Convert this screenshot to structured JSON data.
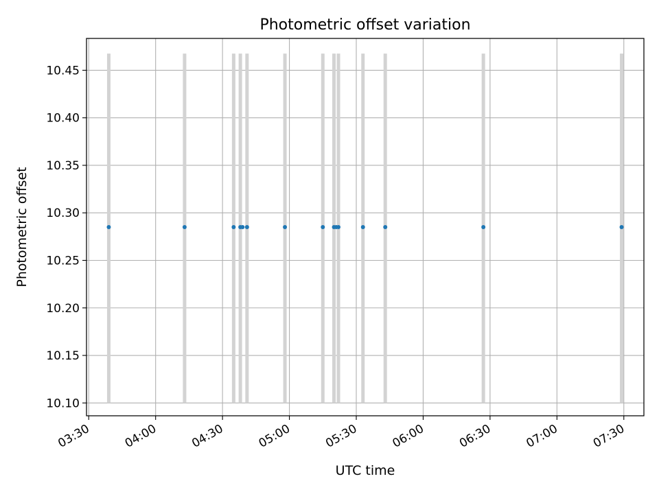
{
  "chart_data": {
    "type": "scatter",
    "title": "Photometric offset variation",
    "xlabel": "UTC time",
    "ylabel": "Photometric offset",
    "x_axis_kind": "time",
    "xlim": [
      "03:29",
      "07:39"
    ],
    "ylim": [
      10.0865,
      10.4835
    ],
    "xticks": [
      "03:30",
      "04:00",
      "04:30",
      "05:00",
      "05:30",
      "06:00",
      "06:30",
      "07:00",
      "07:30"
    ],
    "yticks": [
      10.1,
      10.15,
      10.2,
      10.25,
      10.3,
      10.35,
      10.4,
      10.45
    ],
    "grid": true,
    "series": [
      {
        "color": "#1f77b4",
        "x": [
          "03:39",
          "04:13",
          "04:35",
          "04:38",
          "04:39",
          "04:41",
          "04:58",
          "05:15",
          "05:20",
          "05:21",
          "05:22",
          "05:33",
          "05:43",
          "06:27",
          "07:29"
        ],
        "y": [
          10.285,
          10.285,
          10.285,
          10.285,
          10.285,
          10.285,
          10.285,
          10.285,
          10.285,
          10.285,
          10.285,
          10.285,
          10.285,
          10.285,
          10.285
        ]
      }
    ],
    "vertical_bands": {
      "color": "#d3d3d3",
      "y_range": [
        10.1,
        10.4675
      ],
      "x": [
        "03:39",
        "04:13",
        "04:35",
        "04:38",
        "04:41",
        "04:58",
        "05:15",
        "05:20",
        "05:22",
        "05:33",
        "05:43",
        "06:27",
        "07:29"
      ]
    }
  }
}
